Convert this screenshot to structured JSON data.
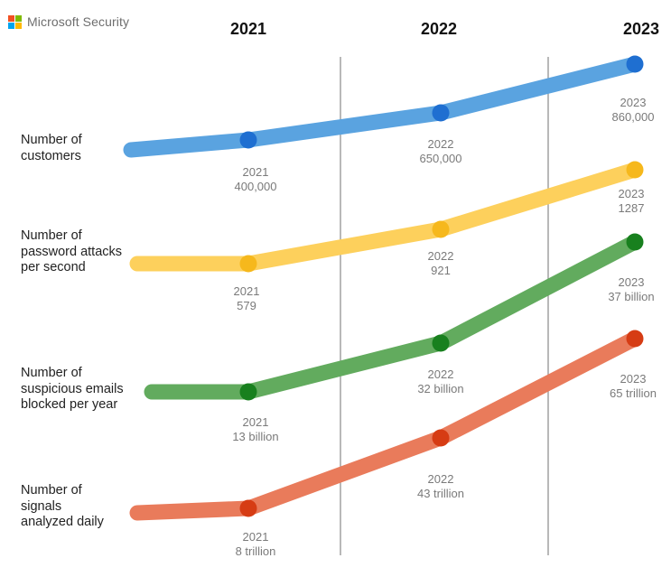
{
  "brand": {
    "name": "Microsoft Security",
    "logo_colors": [
      "#f25022",
      "#7fba00",
      "#00a4ef",
      "#ffb900"
    ]
  },
  "chart_data": {
    "type": "line",
    "years": [
      "2021",
      "2022",
      "2023"
    ],
    "series": [
      {
        "name": "Number of customers",
        "label_lines": [
          "Number of",
          "customers"
        ],
        "line_color": "#5aa3e0",
        "dot_color": "#1f6fd1",
        "points": [
          {
            "year": "2021",
            "value": "400,000"
          },
          {
            "year": "2022",
            "value": "650,000"
          },
          {
            "year": "2023",
            "value": "860,000"
          }
        ]
      },
      {
        "name": "Number of password attacks per second",
        "label_lines": [
          "Number of",
          "password attacks",
          "per second"
        ],
        "line_color": "#fdd05c",
        "dot_color": "#f6b81c",
        "points": [
          {
            "year": "2021",
            "value": "579"
          },
          {
            "year": "2022",
            "value": "921"
          },
          {
            "year": "2023",
            "value": "1287"
          }
        ]
      },
      {
        "name": "Number of suspicious emails blocked per year",
        "label_lines": [
          "Number of",
          "suspicious emails",
          "blocked per year"
        ],
        "line_color": "#62ab5e",
        "dot_color": "#18801e",
        "points": [
          {
            "year": "2021",
            "value": "13 billion"
          },
          {
            "year": "2022",
            "value": "32 billion"
          },
          {
            "year": "2023",
            "value": "37 billion"
          }
        ]
      },
      {
        "name": "Number of signals analyzed daily",
        "label_lines": [
          "Number of",
          "signals",
          "analyzed daily"
        ],
        "line_color": "#e97b5b",
        "dot_color": "#d63c14",
        "points": [
          {
            "year": "2021",
            "value": "8 trillion"
          },
          {
            "year": "2022",
            "value": "43 trillion"
          },
          {
            "year": "2023",
            "value": "65 trillion"
          }
        ]
      }
    ]
  }
}
